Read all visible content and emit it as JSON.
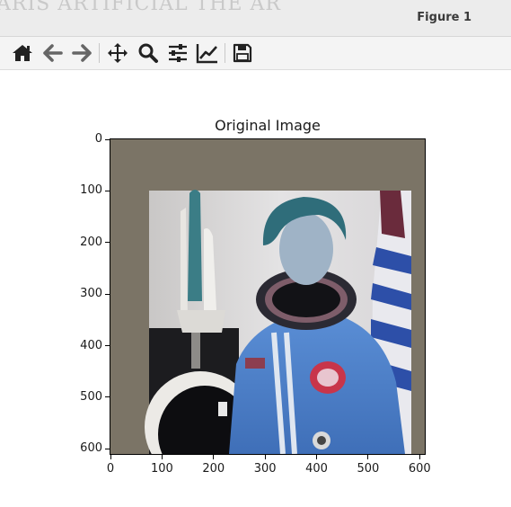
{
  "window": {
    "title": "Figure 1",
    "ghost_text": "ARIS ARTIFICIAL THE AR"
  },
  "toolbar": {
    "buttons": [
      {
        "name": "home-button",
        "icon": "home-icon"
      },
      {
        "name": "back-button",
        "icon": "arrow-left-icon"
      },
      {
        "name": "forward-button",
        "icon": "arrow-right-icon"
      },
      {
        "name": "pan-button",
        "icon": "move-icon"
      },
      {
        "name": "zoom-button",
        "icon": "magnifier-icon"
      },
      {
        "name": "configure-subplots-button",
        "icon": "sliders-icon"
      },
      {
        "name": "edit-axis-button",
        "icon": "chart-line-icon"
      },
      {
        "name": "save-button",
        "icon": "floppy-disk-icon"
      }
    ]
  },
  "axes": {
    "title": "Original Image",
    "y_ticks": [
      "0",
      "100",
      "200",
      "300",
      "400",
      "500",
      "600"
    ],
    "x_ticks": [
      "0",
      "100",
      "200",
      "300",
      "400",
      "500",
      "600"
    ],
    "xlim": [
      0,
      610
    ],
    "ylim": [
      610,
      0
    ]
  },
  "image": {
    "padding_color": "#7b7466",
    "photo_extent": {
      "x0": 75,
      "x1": 585,
      "y0": 100,
      "y1": 610
    }
  }
}
